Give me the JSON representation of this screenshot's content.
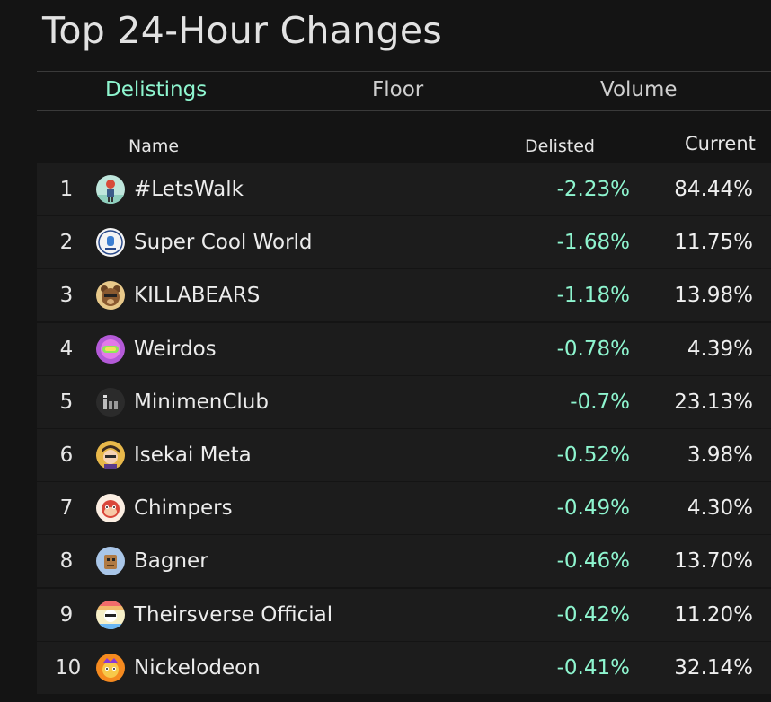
{
  "title": "Top 24-Hour Changes",
  "tabs": [
    {
      "label": "Delistings",
      "active": true
    },
    {
      "label": "Floor",
      "active": false
    },
    {
      "label": "Volume",
      "active": false
    }
  ],
  "columns": {
    "name": "Name",
    "delisted": "Delisted",
    "current": "Current"
  },
  "colors": {
    "accent": "#8ef5cf",
    "background": "#141414",
    "row_background": "#1c1c1c"
  },
  "rows": [
    {
      "rank": "1",
      "name": "#LetsWalk",
      "delisted": "-2.23%",
      "current": "84.44%",
      "icon": "letswalk-avatar-icon"
    },
    {
      "rank": "2",
      "name": "Super Cool World",
      "delisted": "-1.68%",
      "current": "11.75%",
      "icon": "super-cool-world-avatar-icon"
    },
    {
      "rank": "3",
      "name": "KILLABEARS",
      "delisted": "-1.18%",
      "current": "13.98%",
      "icon": "killabears-avatar-icon"
    },
    {
      "rank": "4",
      "name": "Weirdos",
      "delisted": "-0.78%",
      "current": "4.39%",
      "icon": "weirdos-avatar-icon"
    },
    {
      "rank": "5",
      "name": "MinimenClub",
      "delisted": "-0.7%",
      "current": "23.13%",
      "icon": "minimenclub-avatar-icon"
    },
    {
      "rank": "6",
      "name": "Isekai Meta",
      "delisted": "-0.52%",
      "current": "3.98%",
      "icon": "isekai-meta-avatar-icon"
    },
    {
      "rank": "7",
      "name": "Chimpers",
      "delisted": "-0.49%",
      "current": "4.30%",
      "icon": "chimpers-avatar-icon"
    },
    {
      "rank": "8",
      "name": "Bagner",
      "delisted": "-0.46%",
      "current": "13.70%",
      "icon": "bagner-avatar-icon"
    },
    {
      "rank": "9",
      "name": "Theirsverse Official",
      "delisted": "-0.42%",
      "current": "11.20%",
      "icon": "theirsverse-avatar-icon"
    },
    {
      "rank": "10",
      "name": "Nickelodeon",
      "delisted": "-0.41%",
      "current": "32.14%",
      "icon": "nickelodeon-avatar-icon"
    }
  ]
}
